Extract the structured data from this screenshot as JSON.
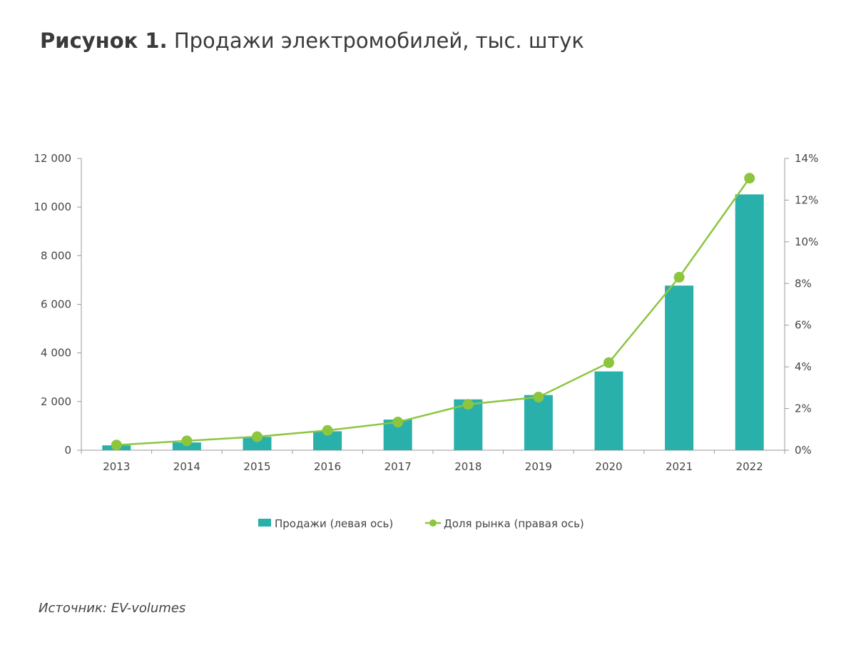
{
  "title": {
    "lead": "Рисунок 1.",
    "rest": " Продажи электромобилей, тыс. штук"
  },
  "source": {
    "label": "Источник:",
    "value": " EV-volumes"
  },
  "colors": {
    "bar": "#2ab0aa",
    "line": "#8cc63f",
    "axis": "#999999"
  },
  "chart_data": {
    "type": "bar",
    "categories": [
      "2013",
      "2014",
      "2015",
      "2016",
      "2017",
      "2018",
      "2019",
      "2020",
      "2021",
      "2022"
    ],
    "series": [
      {
        "name": "Продажи (левая ось)",
        "type": "bar",
        "axis": "left",
        "values": [
          200,
          320,
          550,
          780,
          1260,
          2090,
          2270,
          3240,
          6770,
          10520
        ]
      },
      {
        "name": "Доля рынка (правая ось)",
        "type": "line",
        "axis": "right",
        "values": [
          0.25,
          0.45,
          0.65,
          0.95,
          1.35,
          2.2,
          2.55,
          4.2,
          8.3,
          13.05
        ]
      }
    ],
    "ylim_left": [
      0,
      12000
    ],
    "yticks_left": [
      0,
      2000,
      4000,
      6000,
      8000,
      10000,
      12000
    ],
    "ytick_labels_left": [
      "0",
      "2 000",
      "4 000",
      "6 000",
      "8 000",
      "10 000",
      "12 000"
    ],
    "ylim_right": [
      0,
      14
    ],
    "yticks_right": [
      0,
      2,
      4,
      6,
      8,
      10,
      12,
      14
    ],
    "ytick_labels_right": [
      "0%",
      "2%",
      "4%",
      "6%",
      "8%",
      "10%",
      "12%",
      "14%"
    ],
    "grid": false,
    "legend_position": "bottom"
  }
}
